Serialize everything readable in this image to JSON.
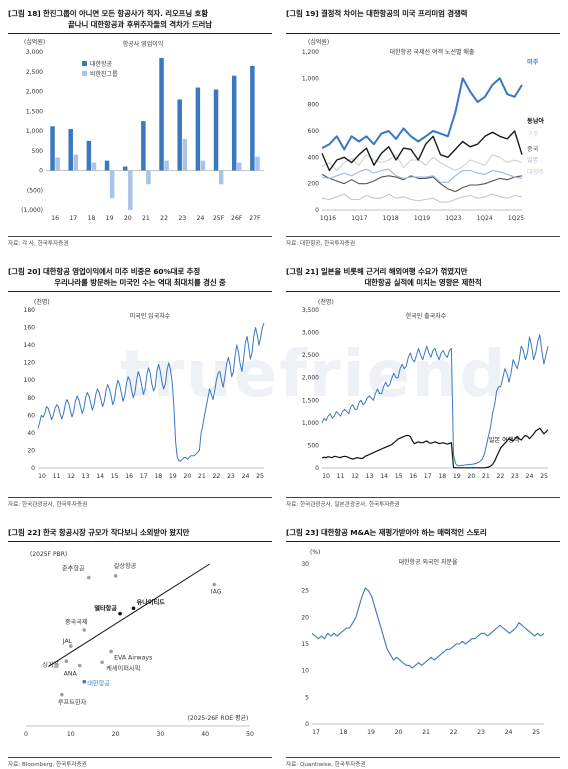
{
  "watermark": "truefriend",
  "panels": [
    {
      "title1": "[그림 18] 한진그룹이 아니면 모든 항공사가 적자. 리오프닝 호황",
      "title2": "끝나니 대한항공과 후위주자들의 격차가 드러남",
      "source": "자료: 각 사, 한국투자증권"
    },
    {
      "title1": "[그림 19] 결정적 차이는 대한항공의 미국 프리미엄 경쟁력",
      "title2": "",
      "source": "자료: 대한항공, 한국투자증권"
    },
    {
      "title1": "[그림 20] 대한항공 영업이익에서 미주 비중은 60%대로 추정",
      "title2": "우리나라를 방문하는 미국인 수는 역대 최대치를 경신 중",
      "source": "자료: 한국관광공사, 한국투자증권"
    },
    {
      "title1": "[그림 21] 일본을 비롯해 근거리 해외여행 수요가 꺾였지만",
      "title2": "대한항공 실적에 미치는 영향은 제한적",
      "source": "자료: 한국관광공사, 일본관광공사, 한국투자증권"
    },
    {
      "title1": "[그림 22] 한국 항공시장 규모가 작다보니 소외받아 왔지만",
      "title2": "",
      "source": "자료: Bloomberg, 한국투자증권"
    },
    {
      "title1": "[그림 23] 대한항공 M&A는 재평가받아야 하는 매력적인 스토리",
      "title2": "",
      "source": "자료: Quantiwise, 한국투자증권"
    }
  ],
  "chart_data": [
    {
      "type": "bar",
      "unit_label": "(십억원)",
      "inner_title": "항공사 영업이익",
      "categories": [
        "16",
        "17",
        "18",
        "19",
        "20",
        "21",
        "22",
        "23",
        "24",
        "25F",
        "26F",
        "27F"
      ],
      "series": [
        {
          "name": "대한항공",
          "color": "#3a78c2",
          "values": [
            1120,
            1050,
            750,
            250,
            100,
            1250,
            2850,
            1800,
            2100,
            2050,
            2400,
            2650
          ]
        },
        {
          "name": "비한진그룹",
          "color": "#a9c4e6",
          "values": [
            330,
            400,
            200,
            -700,
            -1000,
            -350,
            250,
            800,
            250,
            -350,
            200,
            350
          ]
        }
      ],
      "ylim": [
        -1000,
        3000
      ],
      "yticks": [
        "3,000",
        "2,500",
        "2,000",
        "1,500",
        "1,000",
        "500",
        "0",
        "(500)",
        "(1,000)"
      ]
    },
    {
      "type": "line",
      "unit_label": "(십억원)",
      "inner_title": "대한항공 국제선 여객 노선별 매출",
      "xticks": [
        "1Q16",
        "1Q17",
        "1Q18",
        "1Q19",
        "1Q23",
        "1Q24",
        "1Q25"
      ],
      "ylim": [
        0,
        1200
      ],
      "yticks": [
        "1,200",
        "1,000",
        "800",
        "600",
        "400",
        "200",
        "0"
      ],
      "series": [
        {
          "name": "미주",
          "color": "#3a78c2",
          "values": [
            470,
            500,
            560,
            460,
            560,
            520,
            560,
            500,
            580,
            600,
            540,
            620,
            560,
            520,
            560,
            600,
            580,
            560,
            740,
            1000,
            900,
            820,
            860,
            950,
            1000,
            880,
            860,
            950
          ]
        },
        {
          "name": "동남아",
          "color": "#1a1a1a",
          "values": [
            430,
            300,
            380,
            400,
            360,
            420,
            470,
            340,
            430,
            480,
            380,
            470,
            460,
            380,
            500,
            560,
            420,
            400,
            460,
            520,
            480,
            500,
            560,
            590,
            560,
            540,
            600,
            420
          ]
        },
        {
          "name": "구주",
          "color": "#c9d2de",
          "values": [
            330,
            360,
            300,
            360,
            390,
            340,
            420,
            380,
            360,
            380,
            420,
            320,
            380,
            380,
            340,
            400,
            360,
            330,
            300,
            330,
            380,
            360,
            340,
            420,
            400,
            360,
            380,
            360
          ]
        },
        {
          "name": "중국",
          "color": "#555555",
          "values": [
            270,
            240,
            220,
            200,
            230,
            200,
            200,
            220,
            250,
            260,
            250,
            230,
            260,
            240,
            240,
            250,
            200,
            160,
            140,
            170,
            190,
            190,
            200,
            220,
            240,
            230,
            250,
            260
          ]
        },
        {
          "name": "일본",
          "color": "#9fb8dd",
          "values": [
            250,
            240,
            260,
            280,
            260,
            290,
            310,
            280,
            300,
            310,
            260,
            240,
            250,
            250,
            250,
            260,
            210,
            210,
            260,
            300,
            300,
            280,
            270,
            300,
            290,
            270,
            250,
            240
          ]
        },
        {
          "name": "대양주",
          "color": "#c4c8cd",
          "values": [
            90,
            80,
            100,
            120,
            80,
            80,
            110,
            90,
            90,
            120,
            90,
            100,
            80,
            70,
            80,
            90,
            60,
            60,
            80,
            100,
            110,
            90,
            100,
            120,
            100,
            90,
            110,
            100
          ]
        }
      ]
    },
    {
      "type": "line",
      "unit_label": "(천명)",
      "inner_title": "미국인 입국자수",
      "xticks": [
        "10",
        "11",
        "12",
        "13",
        "14",
        "15",
        "16",
        "17",
        "18",
        "19",
        "20",
        "21",
        "22",
        "23",
        "24",
        "25"
      ],
      "ylim": [
        0,
        180
      ],
      "yticks": [
        "180",
        "160",
        "140",
        "120",
        "100",
        "80",
        "60",
        "40",
        "20",
        "0"
      ],
      "series": [
        {
          "name": "미국인 입국자수",
          "color": "#3a78c2",
          "values": [
            45,
            52,
            60,
            58,
            62,
            70,
            68,
            62,
            55,
            60,
            68,
            72,
            70,
            62,
            56,
            62,
            72,
            78,
            74,
            66,
            58,
            64,
            76,
            82,
            78,
            70,
            62,
            68,
            80,
            86,
            82,
            74,
            66,
            72,
            84,
            90,
            86,
            78,
            70,
            76,
            88,
            95,
            90,
            82,
            72,
            78,
            92,
            100,
            95,
            86,
            76,
            82,
            96,
            104,
            100,
            90,
            80,
            86,
            100,
            110,
            104,
            94,
            84,
            90,
            106,
            114,
            108,
            96,
            88,
            92,
            110,
            118,
            110,
            98,
            90,
            96,
            112,
            120,
            112,
            98,
            70,
            30,
            12,
            8,
            8,
            10,
            12,
            12,
            10,
            12,
            14,
            14,
            14,
            16,
            18,
            20,
            40,
            48,
            60,
            70,
            80,
            90,
            84,
            78,
            88,
            100,
            108,
            110,
            100,
            92,
            104,
            118,
            126,
            118,
            104,
            110,
            128,
            140,
            132,
            118,
            110,
            124,
            142,
            150,
            138,
            124,
            132,
            150,
            160,
            152,
            140,
            148,
            160,
            165
          ]
        }
      ]
    },
    {
      "type": "line",
      "unit_label": "(천명)",
      "inner_title": "한국인 출국자수",
      "xticks": [
        "10",
        "11",
        "12",
        "13",
        "14",
        "15",
        "16",
        "17",
        "18",
        "19",
        "20",
        "21",
        "22",
        "23",
        "24",
        "25"
      ],
      "ylim": [
        0,
        3500
      ],
      "yticks": [
        "3,500",
        "3,000",
        "2,500",
        "2,000",
        "1,500",
        "1,000",
        "500",
        "0"
      ],
      "series": [
        {
          "name": "한국인 출국자수",
          "color": "#3a78c2",
          "values": [
            1000,
            1100,
            1050,
            1150,
            1200,
            1100,
            1150,
            1250,
            1200,
            1150,
            1250,
            1300,
            1250,
            1200,
            1350,
            1400,
            1300,
            1300,
            1450,
            1500,
            1400,
            1450,
            1550,
            1600,
            1550,
            1500,
            1650,
            1750,
            1650,
            1650,
            1800,
            1900,
            1800,
            1850,
            2000,
            2100,
            2000,
            2000,
            2200,
            2300,
            2200,
            2250,
            2450,
            2550,
            2400,
            2350,
            2500,
            2650,
            2500,
            2400,
            2550,
            2700,
            2550,
            2450,
            2600,
            2650,
            2500,
            2400,
            2550,
            2600,
            2500,
            2450,
            2600,
            2650,
            300,
            100,
            50,
            50,
            60,
            60,
            70,
            70,
            80,
            80,
            90,
            100,
            120,
            150,
            200,
            300,
            500,
            700,
            900,
            1200,
            1400,
            1700,
            1800,
            1800,
            2000,
            2200,
            2100,
            1900,
            2100,
            2400,
            2300,
            2200,
            2400,
            2700,
            2600,
            2400,
            2550,
            2900,
            2700,
            2400,
            2550,
            2800,
            2950,
            2600,
            2300,
            2500,
            2700
          ]
        },
        {
          "name": "일본 여행객",
          "color": "#111111",
          "values": [
            220,
            240,
            230,
            250,
            240,
            230,
            260,
            250,
            240,
            230,
            250,
            260,
            250,
            230,
            210,
            200,
            210,
            230,
            220,
            210,
            220,
            260,
            280,
            300,
            320,
            340,
            360,
            380,
            400,
            420,
            440,
            460,
            480,
            500,
            520,
            560,
            600,
            640,
            660,
            680,
            700,
            720,
            720,
            700,
            600,
            540,
            560,
            580,
            560,
            560,
            580,
            600,
            560,
            550,
            560,
            580,
            560,
            540,
            550,
            560,
            540,
            530,
            540,
            560,
            10,
            5,
            5,
            5,
            5,
            5,
            5,
            5,
            5,
            5,
            5,
            5,
            5,
            5,
            5,
            5,
            10,
            20,
            40,
            80,
            150,
            250,
            350,
            450,
            500,
            550,
            600,
            650,
            620,
            600,
            650,
            700,
            650,
            620,
            680,
            720,
            700,
            650,
            700,
            750,
            820,
            850,
            880,
            820,
            760,
            800,
            850
          ]
        }
      ],
      "series_label": "일본 여행객"
    },
    {
      "type": "scatter",
      "unit_label": "(2025F PBR)",
      "xlabel": "(2025-26F ROE 평균)",
      "xlim": [
        0,
        50
      ],
      "ylim": [
        0,
        3
      ],
      "xticks": [
        "0",
        "10",
        "20",
        "30",
        "40",
        "50"
      ],
      "points": [
        {
          "label": "춘추항공",
          "x": 14,
          "y": 2.75,
          "bold": false,
          "color": "#9e9e9e"
        },
        {
          "label": "길상항공",
          "x": 20,
          "y": 2.78,
          "bold": false,
          "color": "#9e9e9e"
        },
        {
          "label": "IAG",
          "x": 42,
          "y": 2.62,
          "bold": false,
          "color": "#9e9e9e"
        },
        {
          "label": "유나이티드",
          "x": 24,
          "y": 2.18,
          "bold": true,
          "color": "#111111"
        },
        {
          "label": "델타항공",
          "x": 21,
          "y": 2.08,
          "bold": true,
          "color": "#111111"
        },
        {
          "label": "중국국제",
          "x": 13,
          "y": 1.78,
          "bold": false,
          "color": "#9e9e9e"
        },
        {
          "label": "JAL",
          "x": 10,
          "y": 1.48,
          "bold": false,
          "color": "#9e9e9e"
        },
        {
          "label": "EVA Airways",
          "x": 19,
          "y": 1.38,
          "bold": false,
          "color": "#9e9e9e"
        },
        {
          "label": "싱가폴",
          "x": 9,
          "y": 1.2,
          "bold": false,
          "color": "#9e9e9e"
        },
        {
          "label": "ANA",
          "x": 12,
          "y": 1.12,
          "bold": false,
          "color": "#9e9e9e"
        },
        {
          "label": "케세이퍼시픽",
          "x": 17,
          "y": 1.18,
          "bold": false,
          "color": "#9e9e9e"
        },
        {
          "label": "대한항공",
          "x": 13,
          "y": 0.82,
          "bold": false,
          "color": "#3a78c2"
        },
        {
          "label": "루프트한자",
          "x": 8,
          "y": 0.58,
          "bold": false,
          "color": "#9e9e9e"
        }
      ],
      "trendline": [
        [
          5,
          1.1
        ],
        [
          41,
          3.0
        ]
      ]
    },
    {
      "type": "line",
      "unit_label": "(%)",
      "inner_title": "대한항공 외국인 지분율",
      "xticks": [
        "17",
        "18",
        "19",
        "20",
        "21",
        "22",
        "23",
        "24",
        "25"
      ],
      "ylim": [
        0,
        30
      ],
      "yticks": [
        "30",
        "25",
        "20",
        "15",
        "10",
        "5",
        "0"
      ],
      "series": [
        {
          "name": "대한항공 외국인 지분율",
          "color": "#3a78c2",
          "values": [
            17,
            16.5,
            16,
            16.5,
            16,
            17,
            16.5,
            17,
            16.5,
            17,
            17.5,
            18,
            18,
            19,
            20,
            22,
            24,
            25.5,
            25,
            24,
            22,
            20,
            18,
            16,
            14,
            13,
            12,
            12.5,
            12,
            11.5,
            11,
            11,
            10.5,
            11,
            11.5,
            11,
            11.5,
            12,
            12.5,
            12,
            12.5,
            13,
            13.5,
            14,
            14,
            14.5,
            15,
            15,
            15.5,
            15,
            15.5,
            16,
            16,
            16.5,
            17,
            17,
            16.5,
            17,
            17.5,
            18,
            18.5,
            18,
            17.5,
            17,
            17.5,
            18,
            19,
            18.5,
            18,
            17.5,
            17,
            16.5,
            17,
            16.5,
            17
          ]
        }
      ]
    }
  ]
}
